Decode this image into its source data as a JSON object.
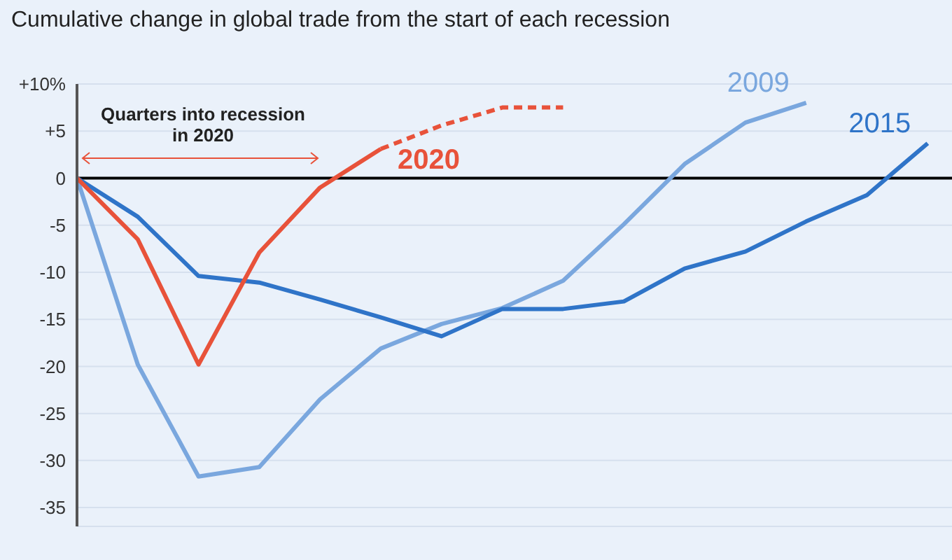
{
  "chart_data": {
    "type": "line",
    "title": "Cumulative change in global trade from the start of each recession",
    "categories": [
      null,
      null,
      null,
      null,
      null,
      null,
      null,
      null,
      null,
      null,
      null,
      null,
      null,
      null,
      null
    ],
    "ylim": [
      -37,
      10
    ],
    "yticks": [
      {
        "value": 10,
        "label": "+10%"
      },
      {
        "value": 5,
        "label": "+5"
      },
      0,
      -5,
      -10,
      -15,
      -20,
      -25,
      -30,
      -35
    ],
    "grid": "y",
    "legend": false,
    "marker": "none",
    "series": [
      {
        "name": "2009",
        "color": "#7aa7de",
        "values": [
          0,
          -19.8,
          -31.7,
          -30.7,
          -23.5,
          -18.1,
          -15.5,
          -13.8,
          -10.9,
          -4.9,
          1.5,
          5.9,
          8,
          null,
          null
        ]
      },
      {
        "name": "2015",
        "color": "#2f74c8",
        "values": [
          0,
          -4.1,
          -10.4,
          -11.1,
          -12.9,
          -14.8,
          -16.8,
          -13.9,
          -13.9,
          -13.1,
          -9.6,
          -7.8,
          -4.6,
          -1.8,
          3.7
        ]
      },
      {
        "name": "2020",
        "color": "#e8523a",
        "values": [
          0,
          -6.5,
          -19.8,
          -7.9,
          -1,
          3.1,
          null,
          null,
          null,
          null,
          null,
          null,
          null,
          null,
          null
        ]
      },
      {
        "color": "#e8523a",
        "line_style": "dashed",
        "values": [
          null,
          null,
          null,
          null,
          null,
          3.1,
          5.6,
          7.5,
          7.5,
          null,
          null,
          null,
          null,
          null,
          null
        ]
      }
    ],
    "ref_lines": [
      {
        "axis": "y",
        "value": 0,
        "color": "#000000",
        "line_style": "solid"
      }
    ],
    "annotations": [
      "Quarters into recession in 2020"
    ]
  }
}
